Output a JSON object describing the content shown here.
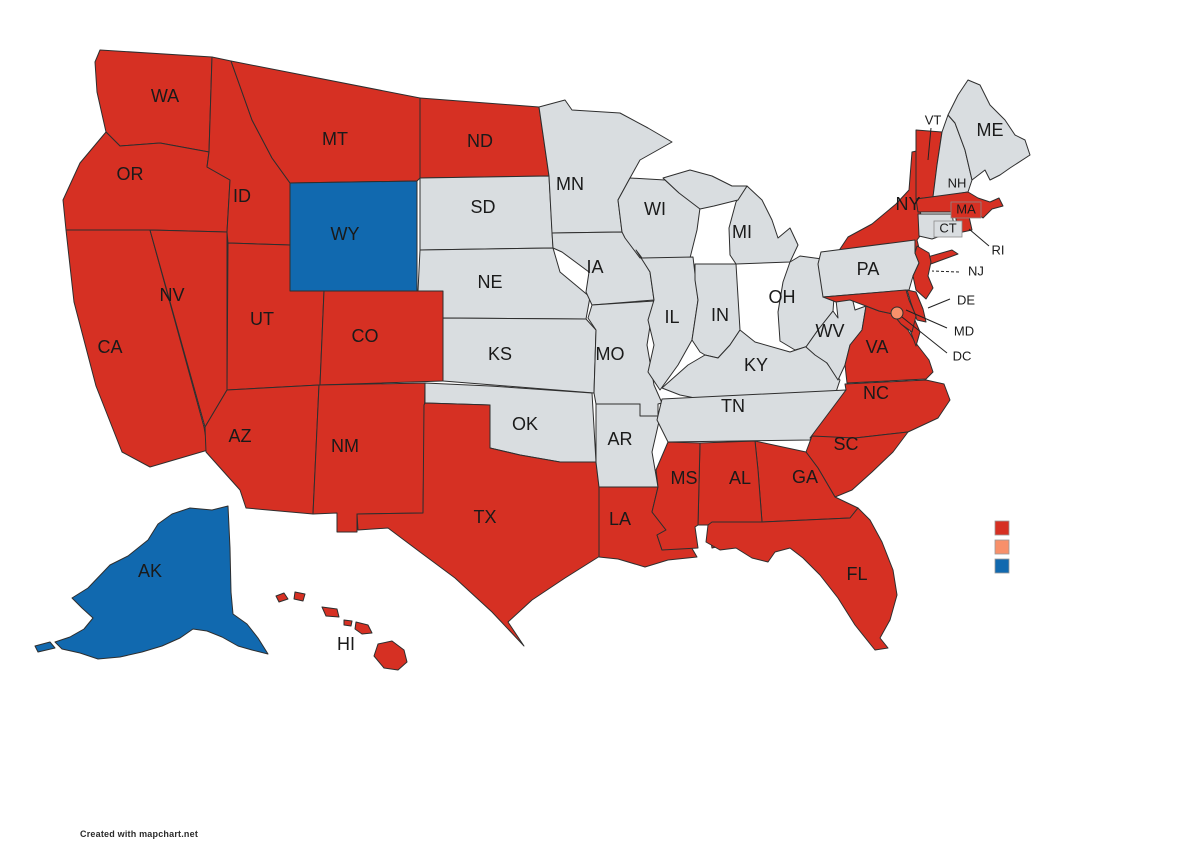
{
  "page": {
    "background": "#ffffff"
  },
  "colors": {
    "red": "#d63023",
    "blue": "#1169af",
    "gray": "#d9dde0",
    "dc": "#f8906a",
    "border": "#2e2e2e",
    "label_text": "#1a1a1a"
  },
  "map": {
    "states": [
      {
        "code": "WA",
        "label": "WA",
        "category": "red"
      },
      {
        "code": "OR",
        "label": "OR",
        "category": "red"
      },
      {
        "code": "CA",
        "label": "CA",
        "category": "red"
      },
      {
        "code": "NV",
        "label": "NV",
        "category": "red"
      },
      {
        "code": "ID",
        "label": "ID",
        "category": "red"
      },
      {
        "code": "MT",
        "label": "MT",
        "category": "red"
      },
      {
        "code": "WY",
        "label": "WY",
        "category": "blue"
      },
      {
        "code": "UT",
        "label": "UT",
        "category": "red"
      },
      {
        "code": "CO",
        "label": "CO",
        "category": "red"
      },
      {
        "code": "AZ",
        "label": "AZ",
        "category": "red"
      },
      {
        "code": "NM",
        "label": "NM",
        "category": "red"
      },
      {
        "code": "ND",
        "label": "ND",
        "category": "red"
      },
      {
        "code": "SD",
        "label": "SD",
        "category": "gray"
      },
      {
        "code": "NE",
        "label": "NE",
        "category": "gray"
      },
      {
        "code": "KS",
        "label": "KS",
        "category": "gray"
      },
      {
        "code": "OK",
        "label": "OK",
        "category": "gray"
      },
      {
        "code": "TX",
        "label": "TX",
        "category": "red"
      },
      {
        "code": "MN",
        "label": "MN",
        "category": "gray"
      },
      {
        "code": "IA",
        "label": "IA",
        "category": "gray"
      },
      {
        "code": "MO",
        "label": "MO",
        "category": "gray"
      },
      {
        "code": "AR",
        "label": "AR",
        "category": "gray"
      },
      {
        "code": "LA",
        "label": "LA",
        "category": "red"
      },
      {
        "code": "WI",
        "label": "WI",
        "category": "gray"
      },
      {
        "code": "IL",
        "label": "IL",
        "category": "gray"
      },
      {
        "code": "IN",
        "label": "IN",
        "category": "gray"
      },
      {
        "code": "MI",
        "label": "MI",
        "category": "gray"
      },
      {
        "code": "OH",
        "label": "OH",
        "category": "gray"
      },
      {
        "code": "KY",
        "label": "KY",
        "category": "gray"
      },
      {
        "code": "TN",
        "label": "TN",
        "category": "gray"
      },
      {
        "code": "WV",
        "label": "WV",
        "category": "gray"
      },
      {
        "code": "VA",
        "label": "VA",
        "category": "red"
      },
      {
        "code": "NC",
        "label": "NC",
        "category": "red"
      },
      {
        "code": "SC",
        "label": "SC",
        "category": "red"
      },
      {
        "code": "GA",
        "label": "GA",
        "category": "red"
      },
      {
        "code": "AL",
        "label": "AL",
        "category": "red"
      },
      {
        "code": "MS",
        "label": "MS",
        "category": "red"
      },
      {
        "code": "FL",
        "label": "FL",
        "category": "red"
      },
      {
        "code": "NY",
        "label": "NY",
        "category": "red"
      },
      {
        "code": "PA",
        "label": "PA",
        "category": "gray"
      },
      {
        "code": "NJ",
        "label": "NJ",
        "category": "red"
      },
      {
        "code": "VT",
        "label": "VT",
        "category": "red"
      },
      {
        "code": "NH",
        "label": "NH",
        "category": "gray"
      },
      {
        "code": "ME",
        "label": "ME",
        "category": "gray"
      },
      {
        "code": "MA",
        "label": "MA",
        "category": "red"
      },
      {
        "code": "CT",
        "label": "CT",
        "category": "gray"
      },
      {
        "code": "RI",
        "label": "RI",
        "category": "red"
      },
      {
        "code": "DE",
        "label": "DE",
        "category": "red"
      },
      {
        "code": "MD",
        "label": "MD",
        "category": "red"
      },
      {
        "code": "DC",
        "label": "DC",
        "category": "dc"
      },
      {
        "code": "AK",
        "label": "AK",
        "category": "blue"
      },
      {
        "code": "HI",
        "label": "HI",
        "category": "red"
      }
    ]
  },
  "legend": {
    "items": [
      {
        "name": "red-category",
        "color_key": "red",
        "label": ""
      },
      {
        "name": "dc-category",
        "color_key": "dc",
        "label": ""
      },
      {
        "name": "blue-category",
        "color_key": "blue",
        "label": ""
      }
    ]
  },
  "footer": {
    "credit": "Created with mapchart.net"
  }
}
